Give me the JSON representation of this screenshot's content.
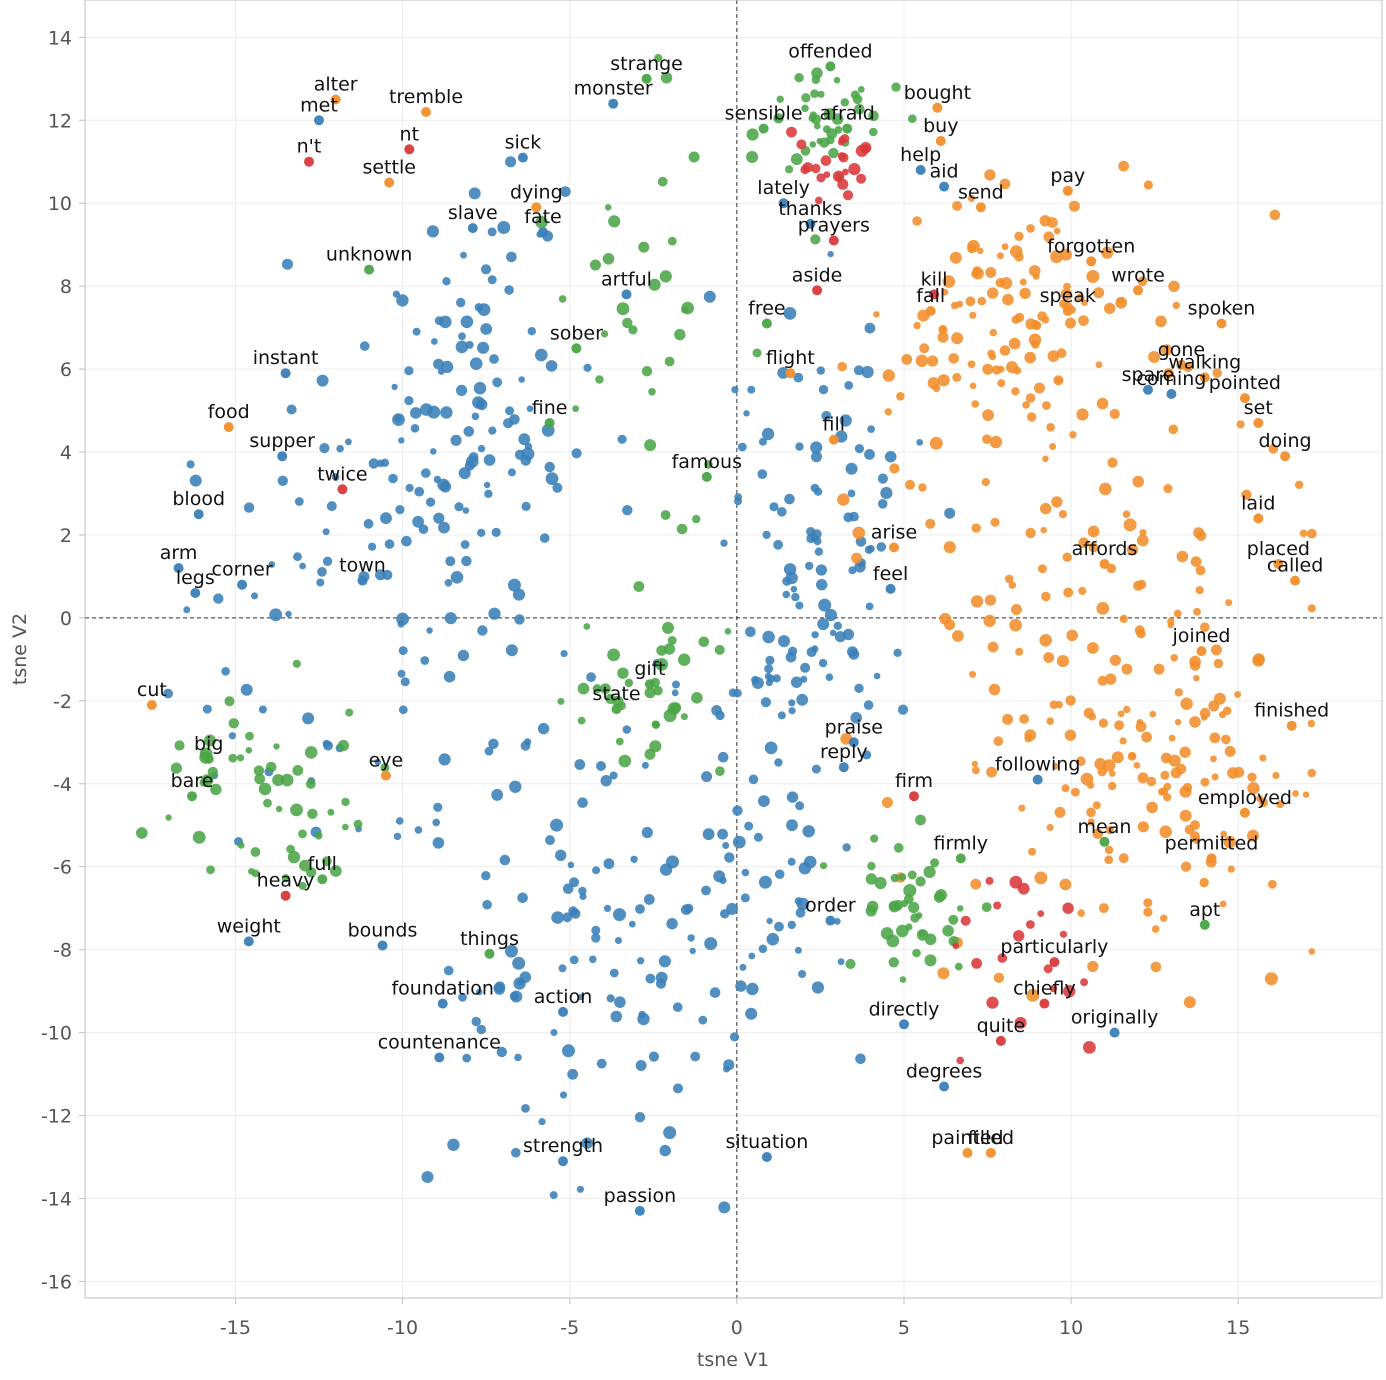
{
  "chart_data": {
    "type": "scatter",
    "xlabel": "tsne V1",
    "ylabel": "tsne V2",
    "xlim": [
      -19.5,
      19.3
    ],
    "ylim": [
      -16.4,
      14.9
    ],
    "x_ticks": [
      -15,
      -10,
      -5,
      0,
      5,
      10,
      15
    ],
    "y_ticks": [
      14,
      12,
      10,
      8,
      6,
      4,
      2,
      0,
      -2,
      -4,
      -6,
      -8,
      -10,
      -12,
      -14,
      -16
    ],
    "reference_lines": {
      "x": 0,
      "y": 0,
      "style": "dashed"
    },
    "grid": true,
    "legend": "none",
    "colors": {
      "blue": "#3a7fb8",
      "orange": "#f28e2b",
      "green": "#4aa547",
      "red": "#d9383a"
    },
    "labeled_points": [
      {
        "word": "strange",
        "x": -2.7,
        "y": 13.0,
        "color": "green"
      },
      {
        "word": "offended",
        "x": 2.8,
        "y": 13.3,
        "color": "green"
      },
      {
        "word": "alter",
        "x": -12.0,
        "y": 12.5,
        "color": "orange"
      },
      {
        "word": "monster",
        "x": -3.7,
        "y": 12.4,
        "color": "blue"
      },
      {
        "word": "met",
        "x": -12.5,
        "y": 12.0,
        "color": "blue"
      },
      {
        "word": "tremble",
        "x": -9.3,
        "y": 12.2,
        "color": "orange"
      },
      {
        "word": "sensible",
        "x": 0.8,
        "y": 11.8,
        "color": "green"
      },
      {
        "word": "bought",
        "x": 6.0,
        "y": 12.3,
        "color": "orange"
      },
      {
        "word": "afraid",
        "x": 3.3,
        "y": 11.8,
        "color": "green"
      },
      {
        "word": "buy",
        "x": 6.1,
        "y": 11.5,
        "color": "orange"
      },
      {
        "word": "sick",
        "x": -6.4,
        "y": 11.1,
        "color": "blue"
      },
      {
        "word": "nt",
        "x": -9.8,
        "y": 11.3,
        "color": "red"
      },
      {
        "word": "n't",
        "x": -12.8,
        "y": 11.0,
        "color": "red"
      },
      {
        "word": "help",
        "x": 5.5,
        "y": 10.8,
        "color": "blue"
      },
      {
        "word": "settle",
        "x": -10.4,
        "y": 10.5,
        "color": "orange"
      },
      {
        "word": "lately",
        "x": 1.4,
        "y": 10.0,
        "color": "blue"
      },
      {
        "word": "dying",
        "x": -6.0,
        "y": 9.9,
        "color": "orange"
      },
      {
        "word": "aid",
        "x": 6.2,
        "y": 10.4,
        "color": "blue"
      },
      {
        "word": "send",
        "x": 7.3,
        "y": 9.9,
        "color": "orange"
      },
      {
        "word": "pay",
        "x": 9.9,
        "y": 10.3,
        "color": "orange"
      },
      {
        "word": "thanks",
        "x": 2.2,
        "y": 9.5,
        "color": "blue"
      },
      {
        "word": "fate",
        "x": -5.8,
        "y": 9.3,
        "color": "blue"
      },
      {
        "word": "prayers",
        "x": 2.9,
        "y": 9.1,
        "color": "red"
      },
      {
        "word": "slave",
        "x": -7.9,
        "y": 9.4,
        "color": "blue"
      },
      {
        "word": "forgotten",
        "x": 10.6,
        "y": 8.6,
        "color": "orange"
      },
      {
        "word": "unknown",
        "x": -11.0,
        "y": 8.4,
        "color": "green"
      },
      {
        "word": "kill",
        "x": 5.9,
        "y": 7.8,
        "color": "red"
      },
      {
        "word": "aside",
        "x": 2.4,
        "y": 7.9,
        "color": "red"
      },
      {
        "word": "artful",
        "x": -3.3,
        "y": 7.8,
        "color": "blue"
      },
      {
        "word": "speak",
        "x": 9.9,
        "y": 7.4,
        "color": "orange"
      },
      {
        "word": "wrote",
        "x": 12.0,
        "y": 7.9,
        "color": "orange"
      },
      {
        "word": "spoken",
        "x": 14.5,
        "y": 7.1,
        "color": "orange"
      },
      {
        "word": "free",
        "x": 0.9,
        "y": 7.1,
        "color": "green"
      },
      {
        "word": "fall",
        "x": 5.8,
        "y": 7.4,
        "color": "orange"
      },
      {
        "word": "sober",
        "x": -4.8,
        "y": 6.5,
        "color": "green"
      },
      {
        "word": "gone",
        "x": 13.3,
        "y": 6.1,
        "color": "orange"
      },
      {
        "word": "walking",
        "x": 14.0,
        "y": 5.8,
        "color": "orange"
      },
      {
        "word": "instant",
        "x": -13.5,
        "y": 5.9,
        "color": "blue"
      },
      {
        "word": "flight",
        "x": 1.6,
        "y": 5.9,
        "color": "orange"
      },
      {
        "word": "spare",
        "x": 12.3,
        "y": 5.5,
        "color": "blue"
      },
      {
        "word": "pointed",
        "x": 15.2,
        "y": 5.3,
        "color": "orange"
      },
      {
        "word": "fine",
        "x": -5.6,
        "y": 4.7,
        "color": "green"
      },
      {
        "word": "coming",
        "x": 13.0,
        "y": 5.4,
        "color": "blue"
      },
      {
        "word": "set",
        "x": 15.6,
        "y": 4.7,
        "color": "orange"
      },
      {
        "word": "food",
        "x": -15.2,
        "y": 4.6,
        "color": "orange"
      },
      {
        "word": "fill",
        "x": 2.9,
        "y": 4.3,
        "color": "orange"
      },
      {
        "word": "doing",
        "x": 16.4,
        "y": 3.9,
        "color": "orange"
      },
      {
        "word": "supper",
        "x": -13.6,
        "y": 3.9,
        "color": "blue"
      },
      {
        "word": "famous",
        "x": -0.9,
        "y": 3.4,
        "color": "green"
      },
      {
        "word": "twice",
        "x": -11.8,
        "y": 3.1,
        "color": "red"
      },
      {
        "word": "blood",
        "x": -16.1,
        "y": 2.5,
        "color": "blue"
      },
      {
        "word": "laid",
        "x": 15.6,
        "y": 2.4,
        "color": "orange"
      },
      {
        "word": "arise",
        "x": 4.7,
        "y": 1.7,
        "color": "orange"
      },
      {
        "word": "placed",
        "x": 16.2,
        "y": 1.3,
        "color": "orange"
      },
      {
        "word": "affords",
        "x": 11.0,
        "y": 1.3,
        "color": "orange"
      },
      {
        "word": "feel",
        "x": 4.6,
        "y": 0.7,
        "color": "blue"
      },
      {
        "word": "town",
        "x": -11.2,
        "y": 0.9,
        "color": "blue"
      },
      {
        "word": "arm",
        "x": -16.7,
        "y": 1.2,
        "color": "blue"
      },
      {
        "word": "called",
        "x": 16.7,
        "y": 0.9,
        "color": "orange"
      },
      {
        "word": "corner",
        "x": -14.8,
        "y": 0.8,
        "color": "blue"
      },
      {
        "word": "legs",
        "x": -16.2,
        "y": 0.6,
        "color": "blue"
      },
      {
        "word": "joined",
        "x": 13.9,
        "y": -0.8,
        "color": "orange"
      },
      {
        "word": "gift",
        "x": -2.6,
        "y": -1.6,
        "color": "green"
      },
      {
        "word": "cut",
        "x": -17.5,
        "y": -2.1,
        "color": "orange"
      },
      {
        "word": "finished",
        "x": 16.6,
        "y": -2.6,
        "color": "orange"
      },
      {
        "word": "state",
        "x": -3.6,
        "y": -2.2,
        "color": "green"
      },
      {
        "word": "praise",
        "x": 3.5,
        "y": -3.0,
        "color": "blue"
      },
      {
        "word": "reply",
        "x": 3.2,
        "y": -3.6,
        "color": "blue"
      },
      {
        "word": "big",
        "x": -15.8,
        "y": -3.4,
        "color": "green"
      },
      {
        "word": "eye",
        "x": -10.5,
        "y": -3.8,
        "color": "orange"
      },
      {
        "word": "following",
        "x": 9.0,
        "y": -3.9,
        "color": "blue"
      },
      {
        "word": "bare",
        "x": -16.3,
        "y": -4.3,
        "color": "green"
      },
      {
        "word": "employed",
        "x": 15.2,
        "y": -4.7,
        "color": "orange"
      },
      {
        "word": "firm",
        "x": 5.3,
        "y": -4.3,
        "color": "red"
      },
      {
        "word": "mean",
        "x": 11.0,
        "y": -5.4,
        "color": "green"
      },
      {
        "word": "permitted",
        "x": 14.2,
        "y": -5.8,
        "color": "orange"
      },
      {
        "word": "firmly",
        "x": 6.7,
        "y": -5.8,
        "color": "green"
      },
      {
        "word": "heavy",
        "x": -13.5,
        "y": -6.7,
        "color": "red"
      },
      {
        "word": "full",
        "x": -12.4,
        "y": -6.3,
        "color": "green"
      },
      {
        "word": "order",
        "x": 2.8,
        "y": -7.3,
        "color": "blue"
      },
      {
        "word": "bounds",
        "x": -10.6,
        "y": -7.9,
        "color": "blue"
      },
      {
        "word": "apt",
        "x": 14.0,
        "y": -7.4,
        "color": "green"
      },
      {
        "word": "weight",
        "x": -14.6,
        "y": -7.8,
        "color": "blue"
      },
      {
        "word": "things",
        "x": -7.4,
        "y": -8.1,
        "color": "green"
      },
      {
        "word": "particularly",
        "x": 9.5,
        "y": -8.3,
        "color": "red"
      },
      {
        "word": "foundation",
        "x": -8.8,
        "y": -9.3,
        "color": "blue"
      },
      {
        "word": "action",
        "x": -5.2,
        "y": -9.5,
        "color": "blue"
      },
      {
        "word": "chiefly",
        "x": 9.2,
        "y": -9.3,
        "color": "red"
      },
      {
        "word": "directly",
        "x": 5.0,
        "y": -9.8,
        "color": "blue"
      },
      {
        "word": "countenance",
        "x": -8.9,
        "y": -10.6,
        "color": "blue"
      },
      {
        "word": "originally",
        "x": 11.3,
        "y": -10.0,
        "color": "blue"
      },
      {
        "word": "quite",
        "x": 7.9,
        "y": -10.2,
        "color": "red"
      },
      {
        "word": "degrees",
        "x": 6.2,
        "y": -11.3,
        "color": "blue"
      },
      {
        "word": "strength",
        "x": -5.2,
        "y": -13.1,
        "color": "blue"
      },
      {
        "word": "painted",
        "x": 6.9,
        "y": -12.9,
        "color": "orange"
      },
      {
        "word": "filled",
        "x": 7.6,
        "y": -12.9,
        "color": "orange"
      },
      {
        "word": "situation",
        "x": 0.9,
        "y": -13.0,
        "color": "blue"
      },
      {
        "word": "passion",
        "x": -2.9,
        "y": -14.3,
        "color": "blue"
      }
    ],
    "background_clusters": [
      {
        "color": "blue",
        "count": 470,
        "seed": 11,
        "regions": [
          {
            "cx": -11.5,
            "cy": 1.5,
            "rx": 4.8,
            "ry": 7.2
          },
          {
            "cx": -4.5,
            "cy": -7.5,
            "rx": 4.0,
            "ry": 6.0
          },
          {
            "cx": 0.5,
            "cy": -4.0,
            "rx": 3.0,
            "ry": 8.0
          },
          {
            "cx": -8.0,
            "cy": 5.5,
            "rx": 3.0,
            "ry": 4.0
          },
          {
            "cx": 2.5,
            "cy": 2.0,
            "rx": 2.5,
            "ry": 5.0
          }
        ]
      },
      {
        "color": "orange",
        "count": 360,
        "seed": 23,
        "regions": [
          {
            "cx": 10.5,
            "cy": 1.0,
            "rx": 6.0,
            "ry": 7.0
          },
          {
            "cx": 12.5,
            "cy": -3.5,
            "rx": 4.0,
            "ry": 3.5
          },
          {
            "cx": 8.5,
            "cy": 7.0,
            "rx": 3.5,
            "ry": 3.0
          }
        ]
      },
      {
        "color": "green",
        "count": 210,
        "seed": 37,
        "regions": [
          {
            "cx": -3.0,
            "cy": 7.5,
            "rx": 3.2,
            "ry": 5.5
          },
          {
            "cx": -14.0,
            "cy": -4.5,
            "rx": 2.8,
            "ry": 2.5
          },
          {
            "cx": -3.0,
            "cy": -1.5,
            "rx": 2.5,
            "ry": 2.0
          },
          {
            "cx": 2.5,
            "cy": 12.0,
            "rx": 1.8,
            "ry": 1.2
          },
          {
            "cx": 5.0,
            "cy": -7.0,
            "rx": 1.8,
            "ry": 1.5
          }
        ]
      },
      {
        "color": "red",
        "count": 45,
        "seed": 53,
        "regions": [
          {
            "cx": 8.5,
            "cy": -8.5,
            "rx": 2.0,
            "ry": 2.0
          },
          {
            "cx": 3.0,
            "cy": 11.0,
            "rx": 1.5,
            "ry": 0.8
          }
        ]
      }
    ]
  }
}
